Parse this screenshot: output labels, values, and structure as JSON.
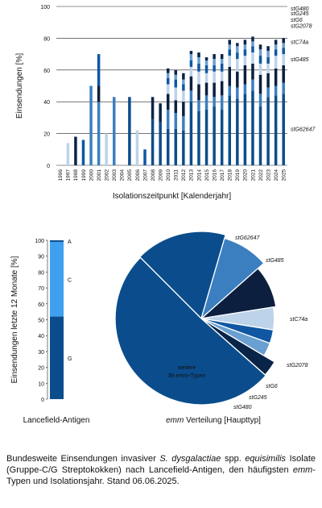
{
  "colors": {
    "stG62647": "#0b4d8c",
    "stG485": "#3b7fc0",
    "stC74a": "#0c1f3f",
    "stG2078": "#bcd3ea",
    "stG6": "#0f57a3",
    "stG245": "#6a9fd1",
    "stG480": "#0a2448",
    "weitere": "#0b4d8c",
    "lancefield_A": "#0b4d8c",
    "lancefield_C": "#3ea0ef",
    "lancefield_G": "#0b4d8c"
  },
  "chart_data": [
    {
      "type": "bar",
      "stacked": true,
      "xlabel": "Isolationszeitpunkt [Kalenderjahr]",
      "ylabel": "Einsendungen [%]",
      "ylim": [
        0,
        100
      ],
      "yticks": [
        "0",
        "20",
        "40",
        "60",
        "80",
        "100"
      ],
      "grid": true,
      "legend_position": "right (inline labels)",
      "categories": [
        "1996",
        "1997",
        "1998",
        "1999",
        "2000",
        "2001",
        "2002",
        "2003",
        "2004",
        "2005",
        "2006",
        "2007",
        "2008",
        "2009",
        "2010",
        "2011",
        "2012",
        "2013",
        "2014",
        "2015",
        "2016",
        "2017",
        "2018",
        "2019",
        "2020",
        "2021",
        "2022",
        "2023",
        "2024",
        "2025"
      ],
      "series": [
        {
          "name": "stG62647",
          "color_key": "stG62647",
          "values": [
            0,
            0,
            0,
            0,
            0,
            0,
            0,
            0,
            0,
            43,
            0,
            0,
            29,
            27,
            23,
            23,
            22,
            40,
            34,
            35,
            37,
            35,
            44,
            42,
            45,
            47,
            37,
            43,
            44,
            45
          ]
        },
        {
          "name": "stG485",
          "color_key": "stG485",
          "values": [
            0,
            0,
            0,
            0,
            50,
            40,
            0,
            43,
            0,
            0,
            0,
            0,
            0,
            0,
            12,
            10,
            9,
            7,
            7,
            9,
            6,
            9,
            6,
            7,
            6,
            7,
            8,
            6,
            6,
            7
          ]
        },
        {
          "name": "stC74a",
          "color_key": "stC74a",
          "values": [
            0,
            0,
            0,
            0,
            0,
            10,
            0,
            0,
            0,
            0,
            0,
            0,
            0,
            0,
            10,
            8,
            9,
            9,
            10,
            8,
            9,
            9,
            12,
            10,
            12,
            10,
            12,
            9,
            11,
            11
          ]
        },
        {
          "name": "stG2078",
          "color_key": "stG2078",
          "values": [
            0,
            14,
            0,
            0,
            0,
            0,
            20,
            0,
            0,
            0,
            22,
            0,
            0,
            0,
            6,
            8,
            7,
            6,
            8,
            6,
            7,
            6,
            7,
            8,
            6,
            7,
            7,
            6,
            8,
            7
          ]
        },
        {
          "name": "stG6",
          "color_key": "stG6",
          "values": [
            0,
            0,
            0,
            16,
            0,
            20,
            0,
            0,
            0,
            0,
            0,
            10,
            0,
            0,
            4,
            5,
            4,
            4,
            5,
            5,
            4,
            5,
            4,
            4,
            4,
            4,
            5,
            4,
            4,
            4
          ]
        },
        {
          "name": "stG245",
          "color_key": "stG245",
          "values": [
            0,
            0,
            0,
            0,
            0,
            0,
            0,
            0,
            0,
            0,
            0,
            0,
            0,
            0,
            3,
            3,
            3,
            4,
            4,
            3,
            4,
            3,
            3,
            4,
            3,
            3,
            4,
            4,
            3,
            3
          ]
        },
        {
          "name": "stG480",
          "color_key": "stG480",
          "values": [
            0,
            0,
            18,
            0,
            0,
            0,
            0,
            0,
            0,
            0,
            0,
            0,
            14,
            12,
            3,
            3,
            4,
            2,
            3,
            2,
            3,
            3,
            3,
            2,
            3,
            3,
            3,
            3,
            3,
            3
          ]
        },
        {
          "name": "",
          "color_key": "gap",
          "values": [
            100,
            86,
            82,
            84,
            50,
            30,
            80,
            57,
            100,
            57,
            78,
            90,
            57,
            61,
            39,
            40,
            42,
            28,
            29,
            32,
            30,
            30,
            21,
            23,
            21,
            19,
            24,
            25,
            21,
            20
          ]
        }
      ],
      "series_labels": [
        {
          "text": "stG480",
          "y": 99
        },
        {
          "text": "stG245",
          "y": 96
        },
        {
          "text": "stG6",
          "y": 92
        },
        {
          "text": "stG2078",
          "y": 88
        },
        {
          "text": "stC74a",
          "y": 78
        },
        {
          "text": "stG485",
          "y": 67
        },
        {
          "text": "stG62647",
          "y": 23
        }
      ]
    },
    {
      "type": "bar",
      "stacked": true,
      "xlabel": "Lancefield-Antigen",
      "ylabel": "Einsendungen letzte 12 Monate [%]",
      "ylim": [
        0,
        100
      ],
      "yticks": [
        "0",
        "10",
        "20",
        "30",
        "40",
        "50",
        "60",
        "70",
        "80",
        "90",
        "100"
      ],
      "segments": [
        {
          "name": "G",
          "value": 52,
          "color_key": "lancefield_G"
        },
        {
          "name": "C",
          "value": 47,
          "color_key": "lancefield_C"
        },
        {
          "name": "A",
          "value": 1,
          "color_key": "lancefield_A"
        }
      ]
    },
    {
      "type": "pie",
      "xlabel": "emm Verteilung [Haupttyp]",
      "slices": [
        {
          "name": "stG62647",
          "value": 17,
          "color_key": "stG62647"
        },
        {
          "name": "stG485",
          "value": 9,
          "color_key": "stG485"
        },
        {
          "name": "stC74a",
          "value": 9,
          "color_key": "stC74a"
        },
        {
          "name": "stG2078",
          "value": 5,
          "color_key": "stG2078"
        },
        {
          "name": "stG6",
          "value": 3,
          "color_key": "stG6"
        },
        {
          "name": "stG245",
          "value": 3,
          "color_key": "stG245"
        },
        {
          "name": "stG480",
          "value": 3,
          "color_key": "stG480"
        },
        {
          "name": "weitere 39 emm-Typen",
          "value": 51,
          "color_key": "weitere"
        }
      ],
      "inner_label_line1": "weitere",
      "inner_label_line2_pre": "39 ",
      "inner_label_line2_it": "emm",
      "inner_label_line2_post": "-Typen"
    }
  ],
  "caption": {
    "p1": "Bundesweite Einsendungen invasiver ",
    "p2": "S. dysgalactiae",
    "p3": " spp. ",
    "p4": "equisimilis",
    "p5": " Isolate (Gruppe-C/G Streptokokken) nach Lancefield-Antigen, den häufigsten ",
    "p6": "emm",
    "p7": "-Typen und Isolationsjahr. Stand 06.06.2025."
  }
}
